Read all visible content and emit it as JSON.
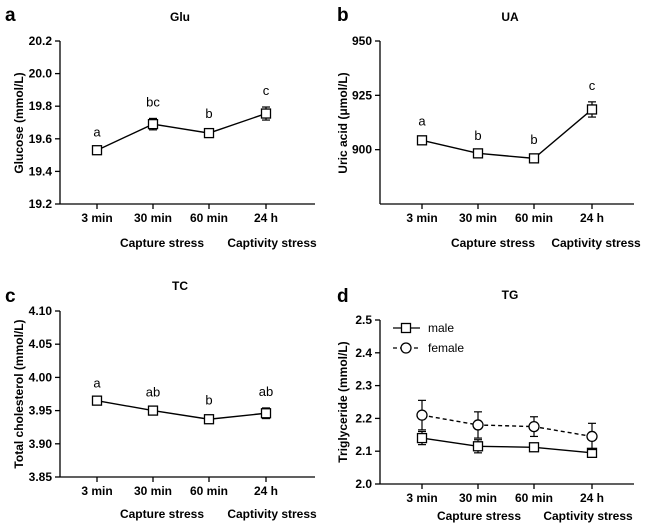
{
  "chart_data": [
    {
      "panel": "a",
      "type": "line",
      "title": "Glu",
      "ylabel": "Glucose (mmol/L)",
      "ylim": [
        19.2,
        20.2
      ],
      "yticks": [
        "19.2",
        "19.4",
        "19.6",
        "19.8",
        "20.0",
        "20.2"
      ],
      "categories": [
        "3 min",
        "30 min",
        "60 min",
        "24 h"
      ],
      "groups": [
        "Capture stress",
        "Captivity stress"
      ],
      "series": [
        {
          "values": [
            19.53,
            19.69,
            19.635,
            19.755
          ],
          "errors": [
            0.01,
            0.035,
            0.02,
            0.04
          ],
          "marker": "square",
          "dashed": false
        }
      ],
      "letters": [
        "a",
        "bc",
        "b",
        "c"
      ]
    },
    {
      "panel": "b",
      "type": "line",
      "title": "UA",
      "ylabel": "Uric acid (μmol/L)",
      "ylim": [
        875,
        950
      ],
      "yticks": [
        "900",
        "925",
        "950"
      ],
      "categories": [
        "3 min",
        "30 min",
        "60 min",
        "24 h"
      ],
      "groups": [
        "Capture stress",
        "Captivity stress"
      ],
      "series": [
        {
          "values": [
            904.3,
            898.3,
            896.0,
            918.5
          ],
          "errors": [
            1.3,
            0.6,
            1.0,
            3.5
          ],
          "marker": "square",
          "dashed": false
        }
      ],
      "letters": [
        "a",
        "b",
        "b",
        "c"
      ]
    },
    {
      "panel": "c",
      "type": "line",
      "title": "TC",
      "ylabel": "Total cholesterol (mmol/L)",
      "ylim": [
        3.85,
        4.1
      ],
      "yticks": [
        "3.85",
        "3.90",
        "3.95",
        "4.00",
        "4.05",
        "4.10"
      ],
      "categories": [
        "3 min",
        "30 min",
        "60 min",
        "24 h"
      ],
      "groups": [
        "Capture stress",
        "Captivity stress"
      ],
      "series": [
        {
          "values": [
            3.965,
            3.95,
            3.937,
            3.946
          ],
          "errors": [
            0.002,
            0.003,
            0.004,
            0.008
          ],
          "marker": "square",
          "dashed": false
        }
      ],
      "letters": [
        "a",
        "ab",
        "b",
        "ab"
      ]
    },
    {
      "panel": "d",
      "type": "line",
      "title": "TG",
      "ylabel": "Triglyceride (mmol/L)",
      "ylim": [
        2.0,
        2.5
      ],
      "yticks": [
        "2.0",
        "2.1",
        "2.2",
        "2.3",
        "2.4",
        "2.5"
      ],
      "categories": [
        "3 min",
        "30 min",
        "60 min",
        "24 h"
      ],
      "groups": [
        "Capture stress",
        "Captivity stress"
      ],
      "legend_position": "top-left",
      "series": [
        {
          "name": "male",
          "values": [
            2.14,
            2.115,
            2.112,
            2.095
          ],
          "errors": [
            0.02,
            0.02,
            0.01,
            0.01
          ],
          "marker": "square",
          "dashed": false
        },
        {
          "name": "female",
          "values": [
            2.21,
            2.18,
            2.175,
            2.145
          ],
          "errors": [
            0.045,
            0.04,
            0.03,
            0.04
          ],
          "marker": "circle",
          "dashed": true
        }
      ],
      "letters": []
    }
  ]
}
